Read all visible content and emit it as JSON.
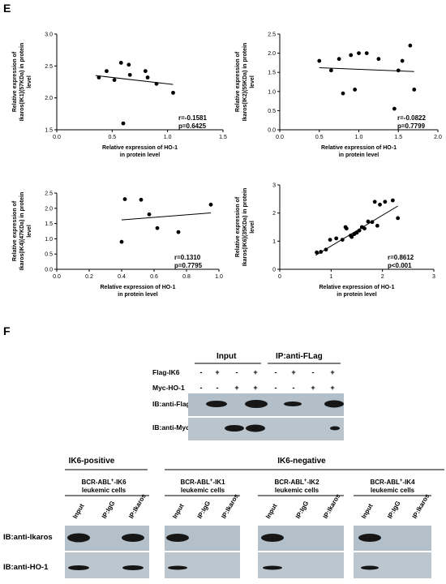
{
  "panel_e": {
    "letter": "E"
  },
  "panel_f": {
    "letter": "F"
  },
  "chart_data": [
    {
      "type": "scatter",
      "xlabel": "Relative expression of HO-1 in protein level",
      "ylabel": "Relative expression of Ikaros(IK1)(57KDa) in protein level",
      "xlim": [
        0.0,
        1.5
      ],
      "ylim": [
        1.5,
        3.0
      ],
      "xticks": [
        "0.0",
        "0.5",
        "1.0",
        "1.5"
      ],
      "yticks": [
        "1.5",
        "2.0",
        "2.5",
        "3.0"
      ],
      "x": [
        0.38,
        0.45,
        0.52,
        0.58,
        0.65,
        0.66,
        0.8,
        0.82,
        0.9,
        1.05,
        0.6
      ],
      "y": [
        2.32,
        2.42,
        2.28,
        2.55,
        2.52,
        2.36,
        2.42,
        2.32,
        2.22,
        2.08,
        1.6
      ],
      "fit": {
        "x": [
          0.35,
          1.05
        ],
        "y": [
          2.35,
          2.21
        ]
      },
      "r": "r=-0.1581",
      "p": "p=0.6425"
    },
    {
      "type": "scatter",
      "xlabel": "Relative expression of HO-1 in protein level",
      "ylabel": "Relative expression of Ikaros(IK2)(55KDa) in protein level",
      "xlim": [
        0.0,
        2.0
      ],
      "ylim": [
        0.0,
        2.5
      ],
      "xticks": [
        "0.0",
        "0.5",
        "1.0",
        "1.5",
        "2.0"
      ],
      "yticks": [
        "0.0",
        "0.5",
        "1.0",
        "1.5",
        "2.0",
        "2.5"
      ],
      "x": [
        0.5,
        0.65,
        0.75,
        0.8,
        0.9,
        1.0,
        1.1,
        1.25,
        1.45,
        1.55,
        1.65,
        1.7,
        1.5,
        0.95
      ],
      "y": [
        1.8,
        1.55,
        1.85,
        0.95,
        1.95,
        2.0,
        2.0,
        1.85,
        0.55,
        1.8,
        2.2,
        1.05,
        1.55,
        1.05
      ],
      "fit": {
        "x": [
          0.5,
          1.7
        ],
        "y": [
          1.62,
          1.52
        ]
      },
      "r": "r=-0.0822",
      "p": "p=0.7799"
    },
    {
      "type": "scatter",
      "xlabel": "Relative expression of HO-1 in protein level",
      "ylabel": "Relative expression of Ikaros(IK4)(47KDa) in protein level",
      "xlim": [
        0.0,
        1.0
      ],
      "ylim": [
        0.0,
        2.5
      ],
      "xticks": [
        "0.0",
        "0.2",
        "0.4",
        "0.6",
        "0.8",
        "1.0"
      ],
      "yticks": [
        "0.0",
        "0.5",
        "1.0",
        "1.5",
        "2.0",
        "2.5"
      ],
      "x": [
        0.42,
        0.52,
        0.57,
        0.62,
        0.75,
        0.95,
        0.4
      ],
      "y": [
        2.3,
        2.28,
        1.8,
        1.35,
        1.22,
        2.12,
        0.9
      ],
      "fit": {
        "x": [
          0.4,
          0.95
        ],
        "y": [
          1.62,
          1.85
        ]
      },
      "r": "r=0.1310",
      "p": "p=0.7795"
    },
    {
      "type": "scatter",
      "xlabel": "Relative expression of HO-1 in protein level",
      "ylabel": "Relative expression of Ikaros(IK6)(35KDa) in protein level",
      "xlim": [
        0,
        3
      ],
      "ylim": [
        0,
        3
      ],
      "xticks": [
        "0",
        "1",
        "2",
        "3"
      ],
      "yticks": [
        "0",
        "1",
        "2",
        "3"
      ],
      "x": [
        0.72,
        0.8,
        0.9,
        0.98,
        1.1,
        1.22,
        1.3,
        1.38,
        1.4,
        1.45,
        1.5,
        1.55,
        1.6,
        1.65,
        1.72,
        1.8,
        1.85,
        1.9,
        1.95,
        2.05,
        2.2,
        2.3,
        1.28
      ],
      "y": [
        0.6,
        0.62,
        0.7,
        1.05,
        1.1,
        1.05,
        1.45,
        1.2,
        1.15,
        1.25,
        1.3,
        1.38,
        1.5,
        1.45,
        1.7,
        1.68,
        2.4,
        1.55,
        2.3,
        2.4,
        2.45,
        1.82,
        1.5
      ],
      "fit": {
        "x": [
          0.7,
          2.3
        ],
        "y": [
          0.5,
          2.25
        ]
      },
      "r": "r=0.8612",
      "p": "p<0.001"
    }
  ],
  "blot_top": {
    "headers": [
      "Input",
      "IP:anti-FLag"
    ],
    "rows": [
      {
        "label": "Flag-IK6",
        "signs": [
          "-",
          "+",
          "-",
          "+",
          "-",
          "+",
          "-",
          "+"
        ]
      },
      {
        "label": "Myc-HO-1",
        "signs": [
          "-",
          "-",
          "+",
          "+",
          "-",
          "-",
          "+",
          "+"
        ]
      }
    ],
    "ib": [
      "IB:anti-Flag",
      "IB:anti-Myc"
    ]
  },
  "blot_bottom": {
    "group_positive": "IK6-positive",
    "group_negative": "IK6-negative",
    "panels": [
      {
        "title_pre": "BCR-ABL",
        "title_post": "-IK6",
        "line2": "leukemic cells",
        "cols": [
          "Input",
          "IP:IgG",
          "IP:Ikaros"
        ]
      },
      {
        "title_pre": "BCR-ABL",
        "title_post": "-IK1",
        "line2": "leukemic cells",
        "cols": [
          "Input",
          "IP:IgG",
          "IP:Ikaros"
        ]
      },
      {
        "title_pre": "BCR-ABL",
        "title_post": "-IK2",
        "line2": "leukemic cells",
        "cols": [
          "Input",
          "IP:IgG",
          "IP:Ikaros"
        ]
      },
      {
        "title_pre": "BCR-ABL",
        "title_post": "-IK4",
        "line2": "leukemic cells",
        "cols": [
          "Input",
          "IP:IgG",
          "IP:Ikaros"
        ]
      }
    ],
    "plus": "+",
    "ib": [
      "IB:anti-Ikaros",
      "IB:anti-HO-1"
    ]
  }
}
